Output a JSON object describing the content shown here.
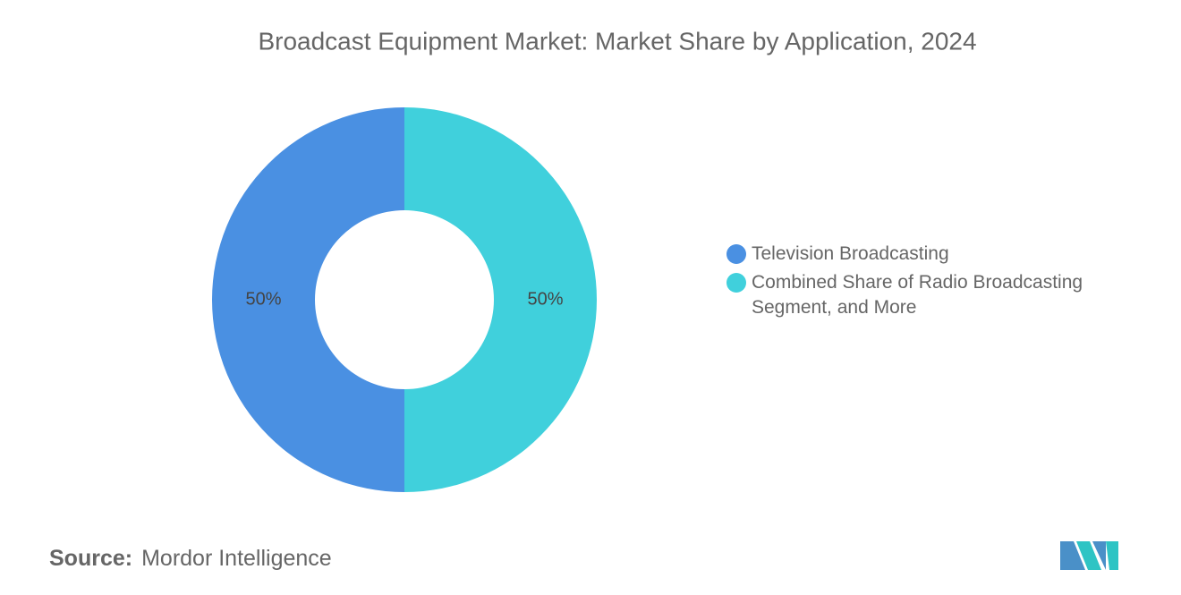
{
  "chart_data": {
    "type": "donut",
    "title": "Broadcast Equipment Market: Market Share by Application, 2024",
    "categories": [
      "Television Broadcasting",
      "Combined Share of Radio Broadcasting Segment, and More"
    ],
    "values": [
      50,
      50
    ],
    "value_labels": [
      "50%",
      "50%"
    ],
    "colors": [
      "#4a90e2",
      "#40d0dc"
    ]
  },
  "footer": {
    "source_label": "Source:",
    "source": "Mordor Intelligence"
  }
}
